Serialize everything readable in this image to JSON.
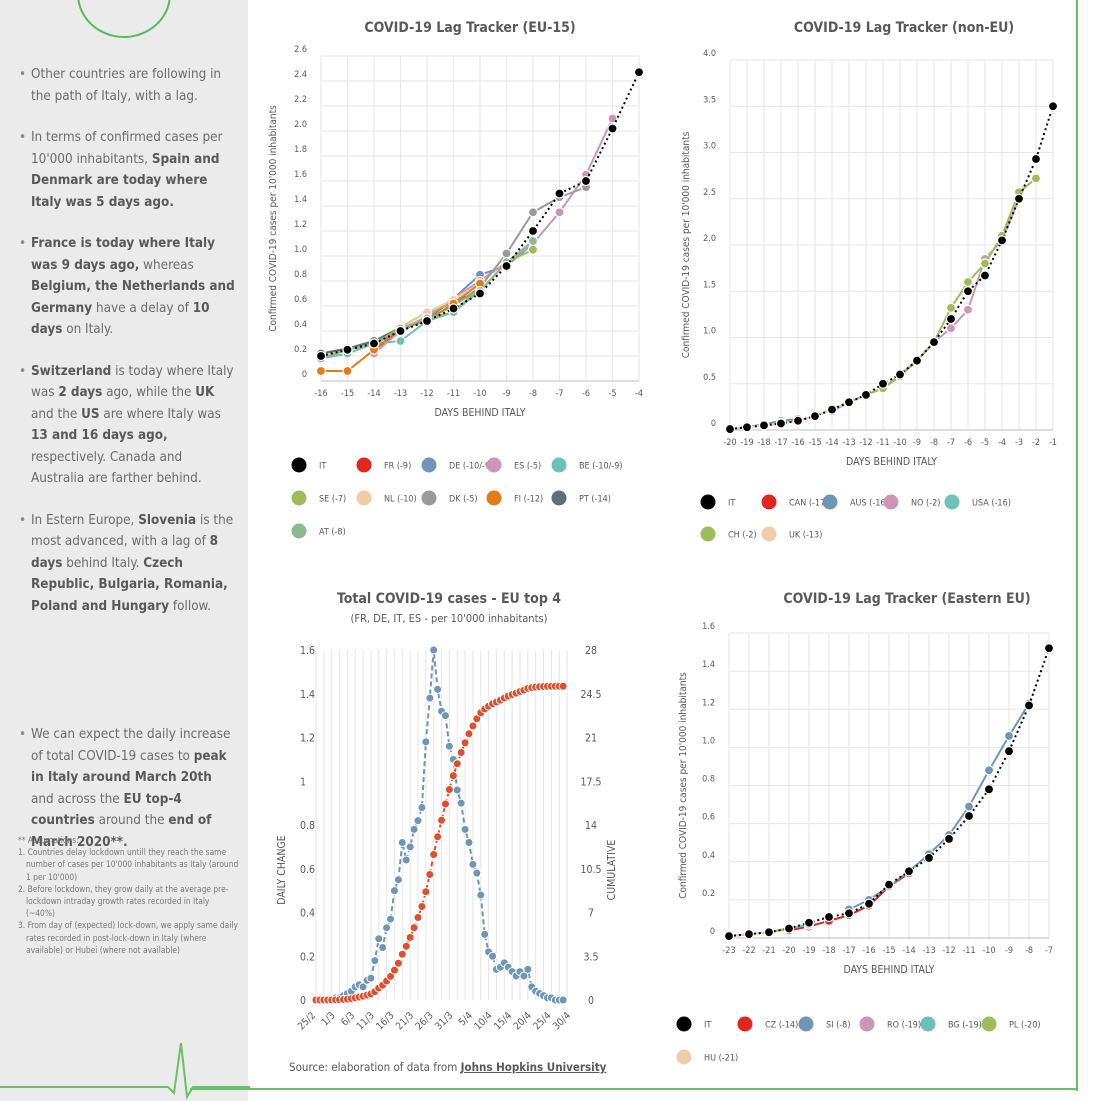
{
  "sidebar": {
    "p1": "Other countries are following in the path of Italy, with a lag.",
    "p2_a": "In terms of confirmed cases per 10'000 inhabitants, ",
    "p2_b": "Spain and Denmark are today where Italy was 5 days ago.",
    "p3_a": "France is today where Italy was 9 days ago,",
    "p3_b": " whereas ",
    "p3_c": "Belgium, the Netherlands and Germany",
    "p3_d": " have a delay of ",
    "p3_e": "10 days",
    "p3_f": " on Italy.",
    "p4_a": "Switzerland",
    "p4_b": " is today where Italy was ",
    "p4_c": "2 days",
    "p4_d": " ago, while the ",
    "p4_e": "UK",
    "p4_f": " and the ",
    "p4_g": "US",
    "p4_h": " are where Italy was ",
    "p4_i": "13 and 16 days ago,",
    "p4_j": " respectively. Canada and Australia are farther behind.",
    "p5_a": "In Estern Europe, ",
    "p5_b": "Slovenia",
    "p5_c": " is the most advanced, with a lag of ",
    "p5_d": "8 days",
    "p5_e": " behind Italy. ",
    "p5_f": "Czech Republic, Bulgaria, Romania, Poland and Hungary",
    "p5_g": " follow.",
    "p6_a": "We can expect the daily increase of total COVID-19 cases to ",
    "p6_b": "peak in Italy around March 20th",
    "p6_c": " and across the ",
    "p6_d": "EU top-4 countries",
    "p6_e": " around the ",
    "p6_f": "end of March 2020**.",
    "assumptions_title": "** Assumptions:",
    "assumptions": [
      "1. Countries delay lockdown untill they reach the same number of cases per 10'000 inhabitants as Italy (around 1 per 10'000)",
      "2. Before lockdown, they grow daily at the average pre-lockdown intraday growth rates recorded in Italy (~40%)",
      "3. From day of (expected) lock-down, we apply same daily rates recorded in post-lock-down in Italy (where available) or Hubei (where not available)"
    ]
  },
  "source": {
    "prefix": "Source: elaboration of data from",
    "link": "Johns Hopkins University"
  },
  "chart_data": [
    {
      "id": "eu15",
      "type": "line",
      "title": "COVID-19 Lag Tracker (EU-15)",
      "xlabel": "DAYS BEHIND ITALY",
      "ylabel": "Confirmed COVID-19 cases per 10'000 inhabitants",
      "xlim": [
        -16,
        -4
      ],
      "ylim": [
        0,
        2.6
      ],
      "x_ticks": [
        -16,
        -15,
        -14,
        -13,
        -12,
        -11,
        -10,
        -9,
        -8,
        -7,
        -6,
        -5,
        -4
      ],
      "y_ticks": [
        0,
        0.2,
        0.4,
        0.6,
        0.8,
        1.0,
        1.2,
        1.4,
        1.6,
        1.8,
        2.0,
        2.2,
        2.4,
        2.6
      ],
      "y_tick_labels": [
        "0",
        "0.2",
        "0.4",
        "0.6",
        "0.8",
        "1.0",
        "1.2",
        "1.4",
        "1.6",
        "1.8",
        "2.0",
        "2.2",
        "2.4",
        "2.6"
      ],
      "legend_position": "bottom",
      "series": [
        {
          "name": "IT",
          "color": "#000000",
          "dotted": true,
          "x": [
            -16,
            -15,
            -14,
            -13,
            -12,
            -11,
            -10,
            -9,
            -8,
            -7,
            -6,
            -5,
            -4
          ],
          "y": [
            0.2,
            0.25,
            0.3,
            0.4,
            0.48,
            0.58,
            0.7,
            0.92,
            1.2,
            1.5,
            1.6,
            2.02,
            2.47
          ]
        },
        {
          "name": "FR (-9)",
          "color": "#e0261d",
          "x": [
            -14,
            -13,
            -12,
            -11,
            -10
          ],
          "y": [
            0.25,
            0.4,
            0.5,
            0.65,
            0.7
          ]
        },
        {
          "name": "DE (-10/-9)",
          "color": "#6f95b9",
          "x": [
            -16,
            -15,
            -14,
            -13,
            -12,
            -11,
            -10,
            -9,
            -8
          ],
          "y": [
            0.2,
            0.25,
            0.3,
            0.4,
            0.5,
            0.66,
            0.85,
            0.92,
            1.1
          ]
        },
        {
          "name": "ES (-5)",
          "color": "#cc96b4",
          "x": [
            -14,
            -13,
            -12,
            -11,
            -10,
            -9,
            -8,
            -7,
            -6,
            -5
          ],
          "y": [
            0.22,
            0.4,
            0.52,
            0.66,
            0.8,
            0.95,
            1.1,
            1.35,
            1.65,
            2.1
          ]
        },
        {
          "name": "BE (-10/-9)",
          "color": "#6fc1b3",
          "x": [
            -16,
            -15,
            -14,
            -13,
            -12,
            -11,
            -10
          ],
          "y": [
            0.18,
            0.22,
            0.3,
            0.32,
            0.48,
            0.55,
            0.75
          ]
        },
        {
          "name": "SE (-7)",
          "color": "#9dbd5b",
          "x": [
            -15,
            -14,
            -13,
            -12,
            -11,
            -10,
            -9,
            -8
          ],
          "y": [
            0.25,
            0.32,
            0.43,
            0.55,
            0.62,
            0.72,
            0.95,
            1.05
          ]
        },
        {
          "name": "NL (-10)",
          "color": "#f1ccaa",
          "x": [
            -16,
            -15,
            -14,
            -13,
            -12,
            -11,
            -10
          ],
          "y": [
            0.2,
            0.25,
            0.3,
            0.42,
            0.55,
            0.65,
            0.78
          ]
        },
        {
          "name": "DK (-5)",
          "color": "#9a9a9a",
          "x": [
            -16,
            -15,
            -14,
            -13,
            -12,
            -11,
            -10,
            -9,
            -8,
            -7,
            -6
          ],
          "y": [
            0.22,
            0.26,
            0.31,
            0.42,
            0.5,
            0.6,
            0.75,
            1.02,
            1.35,
            1.47,
            1.55
          ]
        },
        {
          "name": "FI (-12)",
          "color": "#e37b17",
          "x": [
            -16,
            -15,
            -14,
            -13,
            -12,
            -11,
            -10
          ],
          "y": [
            0.08,
            0.08,
            0.25,
            0.42,
            0.48,
            0.62,
            0.78
          ]
        },
        {
          "name": "PT (-14)",
          "color": "#5d6f78",
          "x": [
            -16,
            -15,
            -14,
            -13,
            -12
          ],
          "y": [
            0.22,
            0.26,
            0.32,
            0.42,
            0.5
          ]
        },
        {
          "name": "AT (-8)",
          "color": "#90b890",
          "x": [
            -16,
            -15,
            -14,
            -13,
            -12,
            -11,
            -10,
            -9,
            -8
          ],
          "y": [
            0.18,
            0.25,
            0.3,
            0.42,
            0.5,
            0.55,
            0.72,
            0.95,
            1.12
          ]
        }
      ]
    },
    {
      "id": "noneu",
      "type": "line",
      "title": "COVID-19 Lag Tracker (non-EU)",
      "xlabel": "DAYS BEHIND ITALY",
      "ylabel": "Confirmed COVID-19 cases per 10'000 inhabitants",
      "xlim": [
        -20,
        -1
      ],
      "ylim": [
        0,
        4.0
      ],
      "x_ticks": [
        -20,
        -19,
        -18,
        -17,
        -16,
        -15,
        -14,
        -13,
        -12,
        -11,
        -10,
        -9,
        -8,
        -7,
        -6,
        -5,
        -4,
        -3,
        -2,
        -1
      ],
      "y_ticks": [
        0,
        0.5,
        1.0,
        1.5,
        2.0,
        2.5,
        3.0,
        3.5,
        4.0
      ],
      "y_tick_labels": [
        "0",
        "0.5",
        "1.0",
        "1.5",
        "2.0",
        "2.5",
        "3.0",
        "3.5",
        "4.0"
      ],
      "legend_position": "bottom",
      "series": [
        {
          "name": "IT",
          "color": "#000000",
          "dotted": true,
          "x": [
            -20,
            -19,
            -18,
            -17,
            -16,
            -15,
            -14,
            -13,
            -12,
            -11,
            -10,
            -9,
            -8,
            -7,
            -6,
            -5,
            -4,
            -3,
            -2,
            -1
          ],
          "y": [
            0.01,
            0.03,
            0.05,
            0.07,
            0.1,
            0.15,
            0.22,
            0.3,
            0.38,
            0.5,
            0.6,
            0.75,
            0.95,
            1.2,
            1.5,
            1.67,
            2.05,
            2.5,
            2.93,
            3.5
          ]
        },
        {
          "name": "CAN (-17)",
          "color": "#e0261d",
          "x": [
            -20,
            -19,
            -18,
            -17
          ],
          "y": [
            0.01,
            0.03,
            0.06,
            0.08
          ]
        },
        {
          "name": "AUS (-16)",
          "color": "#6f95b9",
          "x": [
            -20,
            -19,
            -18,
            -17,
            -16
          ],
          "y": [
            0.01,
            0.03,
            0.06,
            0.1,
            0.12
          ]
        },
        {
          "name": "NO (-2)",
          "color": "#cc96b4",
          "x": [
            -14,
            -13,
            -12,
            -11,
            -10,
            -9,
            -8,
            -7,
            -6,
            -5,
            -4,
            -3
          ],
          "y": [
            0.2,
            0.3,
            0.38,
            0.45,
            0.6,
            0.75,
            0.95,
            1.1,
            1.3,
            1.85,
            2.05,
            2.5
          ]
        },
        {
          "name": "USA (-16)",
          "color": "#6fc1b3",
          "x": [
            -20,
            -19,
            -18,
            -17,
            -16
          ],
          "y": [
            0.01,
            0.03,
            0.05,
            0.08,
            0.1
          ]
        },
        {
          "name": "CH (-2)",
          "color": "#9dbd5b",
          "x": [
            -16,
            -15,
            -14,
            -13,
            -12,
            -11,
            -10,
            -9,
            -8,
            -7,
            -6,
            -5,
            -4,
            -3,
            -2
          ],
          "y": [
            0.1,
            0.15,
            0.22,
            0.3,
            0.38,
            0.45,
            0.58,
            0.75,
            0.95,
            1.32,
            1.6,
            1.8,
            2.1,
            2.57,
            2.72
          ]
        },
        {
          "name": "UK (-13)",
          "color": "#f1ccaa",
          "x": [
            -20,
            -19,
            -18,
            -17,
            -16,
            -15,
            -14,
            -13
          ],
          "y": [
            0.01,
            0.03,
            0.05,
            0.07,
            0.1,
            0.15,
            0.22,
            0.3
          ]
        }
      ]
    },
    {
      "id": "top4",
      "type": "line",
      "title": "Total COVID-19 cases - EU top 4",
      "subtitle": "(FR, DE, IT, ES - per 10'000 inhabitants)",
      "ylabel": "DAILY CHANGE",
      "y2label": "CUMULATIVE",
      "ylim": [
        0,
        1.6
      ],
      "y2lim": [
        0,
        28
      ],
      "y_ticks": [
        0,
        0.2,
        0.4,
        0.6,
        0.8,
        1,
        1.2,
        1.4,
        1.6
      ],
      "y_tick_labels": [
        "0",
        "0.2",
        "0.4",
        "0.6",
        "0.8",
        "1",
        "1.2",
        "1.4",
        "1.6"
      ],
      "y2_ticks": [
        0,
        3.5,
        7,
        10.5,
        14,
        17.5,
        21,
        24.5,
        28
      ],
      "y2_tick_labels": [
        "0",
        "3.5",
        "7",
        "10.5",
        "14",
        "17.5",
        "21",
        "24.5",
        "28"
      ],
      "x_tick_labels": [
        "25/2",
        "1/3",
        "6/3",
        "11/3",
        "16/3",
        "21/3",
        "26/3",
        "31/3",
        "5/4",
        "10/4",
        "15/4",
        "20/4",
        "25/4",
        "30/4"
      ],
      "days": 66,
      "series": [
        {
          "name": "Daily change",
          "axis": "left",
          "color": "#6f95b9",
          "values": [
            0,
            0,
            0,
            0,
            0,
            0.01,
            0.01,
            0.02,
            0.03,
            0.04,
            0.06,
            0.07,
            0.06,
            0.09,
            0.1,
            0.18,
            0.28,
            0.24,
            0.33,
            0.37,
            0.5,
            0.55,
            0.72,
            0.64,
            0.7,
            0.78,
            0.82,
            0.88,
            1.18,
            1.38,
            1.6,
            1.42,
            1.32,
            1.3,
            1.16,
            1.1,
            0.96,
            0.9,
            0.78,
            0.72,
            0.62,
            0.58,
            0.48,
            0.3,
            0.22,
            0.2,
            0.14,
            0.15,
            0.17,
            0.15,
            0.13,
            0.11,
            0.13,
            0.11,
            0.14,
            0.06,
            0.04,
            0.03,
            0.02,
            0.01,
            0.01,
            0,
            0,
            0
          ]
        },
        {
          "name": "Cumulative",
          "axis": "right",
          "color": "#e04e2c",
          "values": [
            0,
            0,
            0,
            0,
            0,
            0.01,
            0.02,
            0.04,
            0.07,
            0.11,
            0.17,
            0.24,
            0.3,
            0.39,
            0.49,
            0.67,
            0.95,
            1.19,
            1.52,
            1.89,
            2.39,
            2.94,
            3.66,
            4.3,
            5,
            5.78,
            6.6,
            7.48,
            8.66,
            10.04,
            11.64,
            13.06,
            14.38,
            15.68,
            16.84,
            17.94,
            18.9,
            19.8,
            20.58,
            21.3,
            21.92,
            22.5,
            22.98,
            23.28,
            23.5,
            23.7,
            23.84,
            23.99,
            24.16,
            24.31,
            24.44,
            24.55,
            24.68,
            24.79,
            24.93,
            24.99,
            25.03,
            25.06,
            25.08,
            25.09,
            25.1,
            25.1,
            25.1,
            25.1
          ]
        }
      ]
    },
    {
      "id": "easteu",
      "type": "line",
      "title": "COVID-19 Lag Tracker (Eastern EU)",
      "xlabel": "DAYS BEHIND ITALY",
      "ylabel": "Confirmed COVID-19 cases per 10'000 inhabitants",
      "xlim": [
        -23,
        -7
      ],
      "ylim": [
        0,
        1.6
      ],
      "x_ticks": [
        -23,
        -22,
        -21,
        -20,
        -19,
        -18,
        -17,
        -16,
        -15,
        -14,
        -13,
        -12,
        -11,
        -10,
        -9,
        -8,
        -7
      ],
      "y_ticks": [
        0,
        0.2,
        0.4,
        0.6,
        0.8,
        1.0,
        1.2,
        1.4,
        1.6
      ],
      "y_tick_labels": [
        "0",
        "0.2",
        "0.4",
        "0.6",
        "0.8",
        "1.0",
        "1.2",
        "1.4",
        "1.6"
      ],
      "legend_position": "bottom",
      "series": [
        {
          "name": "IT",
          "color": "#000000",
          "dotted": true,
          "x": [
            -23,
            -22,
            -21,
            -20,
            -19,
            -18,
            -17,
            -16,
            -15,
            -14,
            -13,
            -12,
            -11,
            -10,
            -9,
            -8,
            -7
          ],
          "y": [
            0.01,
            0.02,
            0.03,
            0.05,
            0.08,
            0.11,
            0.13,
            0.18,
            0.28,
            0.35,
            0.42,
            0.52,
            0.64,
            0.78,
            0.98,
            1.22,
            1.52
          ]
        },
        {
          "name": "CZ (-14)",
          "color": "#e0261d",
          "x": [
            -20,
            -19,
            -18,
            -17,
            -16,
            -15,
            -14
          ],
          "y": [
            0.04,
            0.06,
            0.09,
            0.12,
            0.17,
            0.27,
            0.34
          ]
        },
        {
          "name": "SI (-8)",
          "color": "#6f95b9",
          "x": [
            -17,
            -16,
            -15,
            -14,
            -13,
            -12,
            -11,
            -10,
            -9,
            -8
          ],
          "y": [
            0.15,
            0.2,
            0.27,
            0.35,
            0.44,
            0.54,
            0.69,
            0.88,
            1.06,
            1.23
          ]
        },
        {
          "name": "RO (-19)",
          "color": "#cc96b4",
          "x": [
            -23,
            -22,
            -21,
            -20,
            -19
          ],
          "y": [
            0.01,
            0.02,
            0.03,
            0.05,
            0.07
          ]
        },
        {
          "name": "BG (-19)",
          "color": "#6fc1b3",
          "x": [
            -23,
            -22,
            -21,
            -20,
            -19
          ],
          "y": [
            0.01,
            0.02,
            0.03,
            0.05,
            0.07
          ]
        },
        {
          "name": "PL (-20)",
          "color": "#9dbd5b",
          "x": [
            -23,
            -22,
            -21,
            -20
          ],
          "y": [
            0.01,
            0.02,
            0.03,
            0.05
          ]
        },
        {
          "name": "HU (-21)",
          "color": "#f1ccaa",
          "x": [
            -23,
            -22,
            -21
          ],
          "y": [
            0.01,
            0.02,
            0.03
          ]
        }
      ]
    }
  ]
}
